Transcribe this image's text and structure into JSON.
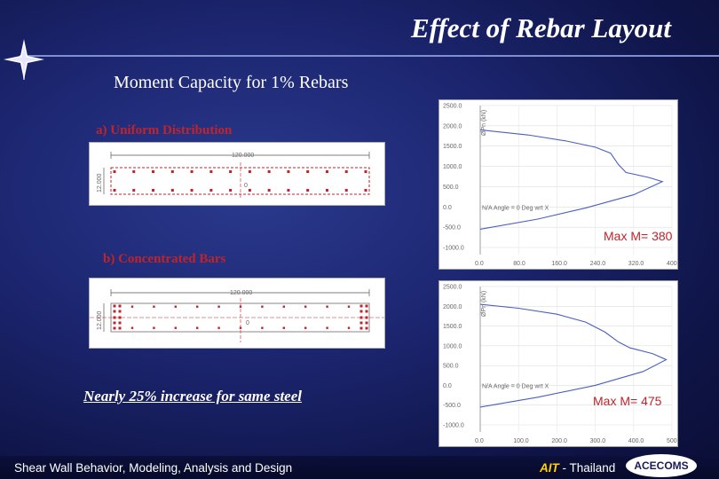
{
  "title": "Effect of Rebar Layout",
  "subtitle": "Moment Capacity for 1% Rebars",
  "section_a": {
    "label": "a) Uniform Distribution",
    "dim_length": "120.000",
    "dim_depth": "12.000",
    "center_mark": "0"
  },
  "section_b": {
    "label": "b) Concentrated Bars",
    "dim_length": "120.000",
    "dim_depth": "12.000",
    "center_mark": "0"
  },
  "chart_a": {
    "yticks": [
      "2500.0",
      "2000.0",
      "1500.0",
      "1000.0",
      "500.0",
      "0.0",
      "-500.0",
      "-1000.0"
    ],
    "xticks": [
      "0.0",
      "80.0",
      "160.0",
      "240.0",
      "320.0",
      "400.0"
    ],
    "ylabel": "ØPn (kN)",
    "annotation": "N/A Angle = 0 Deg wrt X",
    "max_label": "Max M= 380"
  },
  "chart_b": {
    "yticks": [
      "2500.0",
      "2000.0",
      "1500.0",
      "1000.0",
      "500.0",
      "0.0",
      "-500.0",
      "-1000.0"
    ],
    "xticks": [
      "0.0",
      "100.0",
      "200.0",
      "300.0",
      "400.0",
      "500.0"
    ],
    "ylabel": "ØPn (kN)",
    "annotation": "N/A Angle = 0 Deg wrt X",
    "max_label": "Max M= 475"
  },
  "note": "Nearly 25% increase for same steel",
  "footer": {
    "course": "Shear Wall Behavior, Modeling, Analysis and Design",
    "org_ait": "AIT",
    "org_rest": " - Thailand",
    "badge": "ACECOMS"
  },
  "colors": {
    "accent_red": "#c0232b",
    "curve_blue": "#4a5fc0",
    "ait_yellow": "#ffd200"
  }
}
